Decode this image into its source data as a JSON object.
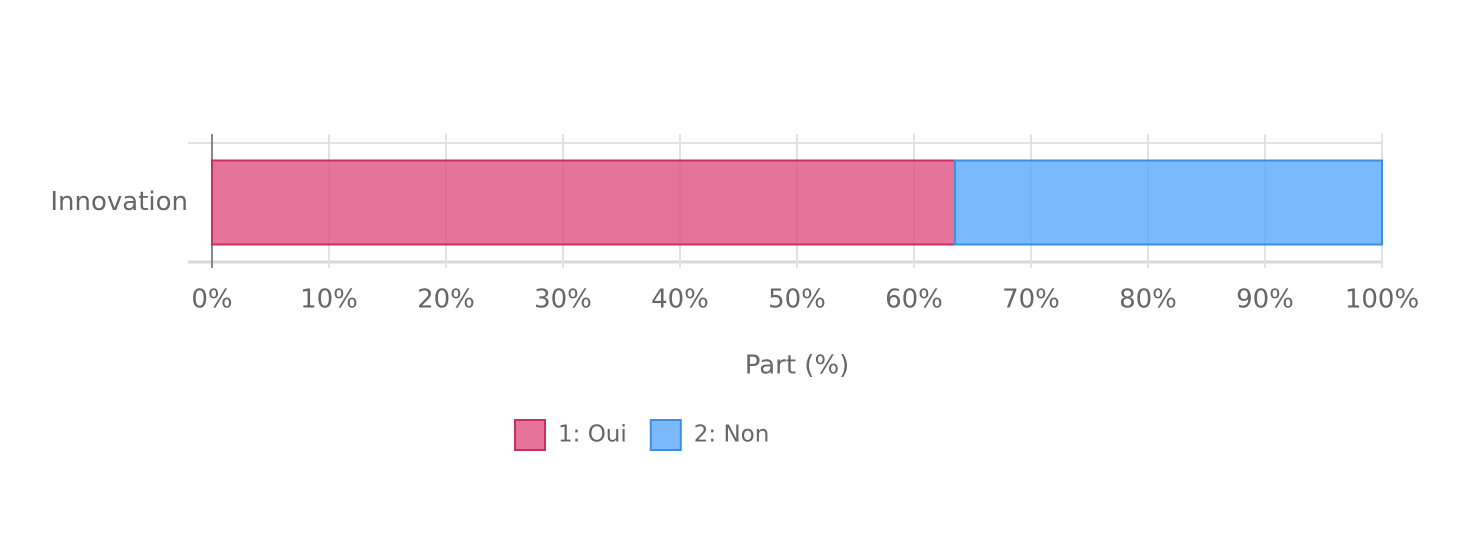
{
  "chart_data": {
    "type": "stacked-bar-horizontal",
    "categories": [
      "Innovation"
    ],
    "series": [
      {
        "name": "1: Oui",
        "color": "#e0507f",
        "stroke": "#c92e66",
        "values": [
          63.5
        ]
      },
      {
        "name": "2: Non",
        "color": "#5aa7fc",
        "stroke": "#3d8fe0",
        "values": [
          36.5
        ]
      }
    ],
    "xlabel": "Part (%)",
    "xlim": [
      0,
      100
    ],
    "xticks": [
      {
        "value": 0,
        "label": "0%"
      },
      {
        "value": 10,
        "label": "10%"
      },
      {
        "value": 20,
        "label": "20%"
      },
      {
        "value": 30,
        "label": "30%"
      },
      {
        "value": 40,
        "label": "40%"
      },
      {
        "value": 50,
        "label": "50%"
      },
      {
        "value": 60,
        "label": "60%"
      },
      {
        "value": 70,
        "label": "70%"
      },
      {
        "value": 80,
        "label": "80%"
      },
      {
        "value": 90,
        "label": "90%"
      },
      {
        "value": 100,
        "label": "100%"
      }
    ],
    "grid": true,
    "legend": "bottom"
  }
}
